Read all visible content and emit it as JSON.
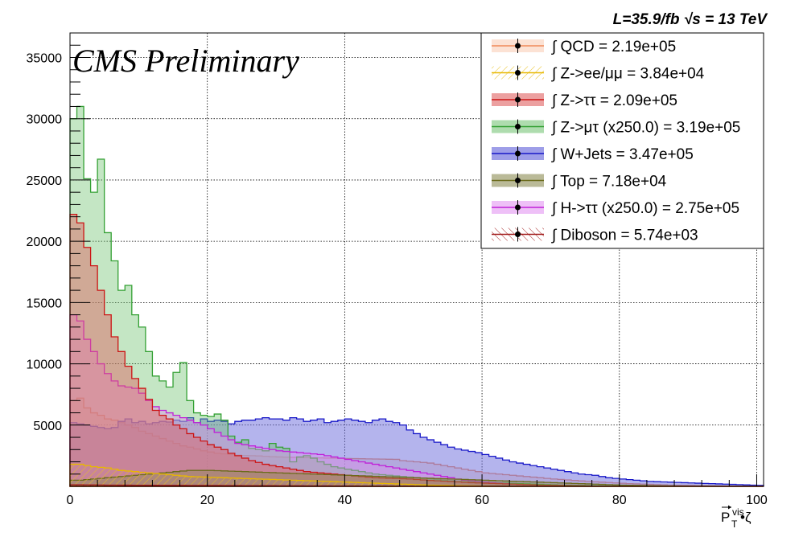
{
  "chart_data": {
    "type": "histogram",
    "title": "",
    "top_right_label": "L=35.9/fb  √s = 13 TeV",
    "overlay_label": "CMS Preliminary",
    "xlabel": "P_T^vis • ζ",
    "xlabel_main": "P",
    "xlabel_sub": "T",
    "xlabel_sup": "vis",
    "xlabel_suffix": " •ζ",
    "ylabel": "",
    "xlim": [
      0,
      101
    ],
    "ylim": [
      0,
      37000
    ],
    "x_ticks": [
      0,
      20,
      40,
      60,
      80,
      100
    ],
    "y_ticks": [
      5000,
      10000,
      15000,
      20000,
      25000,
      30000,
      35000
    ],
    "grid": true,
    "legend_position": "top-right",
    "bin_width": 1,
    "series": [
      {
        "name": "∫ QCD = 2.19e+05",
        "line_color": "#f08a5a",
        "fill_color": "#fbd3bd",
        "fill_opacity": 0.5,
        "hatched": false,
        "values": [
          7000,
          7200,
          6400,
          6000,
          5800,
          5500,
          5400,
          5200,
          5000,
          4800,
          4500,
          4300,
          4100,
          3900,
          3700,
          3500,
          3300,
          3200,
          3050,
          2900,
          2800,
          2700,
          2650,
          2600,
          2550,
          2520,
          2500,
          2480,
          2450,
          2420,
          2400,
          2380,
          2370,
          2360,
          2340,
          2330,
          2320,
          2310,
          2300,
          2280,
          2270,
          2260,
          2250,
          2240,
          2230,
          2220,
          2210,
          2200,
          2100,
          2050,
          2000,
          1950,
          1900,
          1800,
          1700,
          1600,
          1500,
          1400,
          1300,
          1200,
          1100,
          1050,
          1000,
          950,
          900,
          850,
          800,
          750,
          700,
          650,
          600,
          560,
          520,
          480,
          440,
          400,
          370,
          340,
          310,
          280,
          250,
          220,
          200,
          180,
          160,
          140,
          120,
          100,
          90,
          80,
          70,
          60,
          50,
          40,
          30,
          20,
          10,
          5,
          0,
          0,
          0
        ]
      },
      {
        "name": "∫ Z->ee/μμ = 3.84e+04",
        "line_color": "#e8b800",
        "fill_color": "#f6e27a",
        "fill_opacity": 0.35,
        "hatched": true,
        "values": [
          1800,
          1800,
          1700,
          1600,
          1550,
          1500,
          1400,
          1300,
          1250,
          1200,
          1150,
          1100,
          1050,
          1000,
          950,
          900,
          850,
          800,
          780,
          760,
          740,
          720,
          700,
          680,
          660,
          640,
          620,
          600,
          580,
          560,
          540,
          520,
          500,
          480,
          460,
          440,
          420,
          400,
          380,
          360,
          340,
          320,
          300,
          280,
          260,
          240,
          220,
          200,
          180,
          160,
          140,
          120,
          100,
          90,
          80,
          70,
          60,
          50,
          40,
          30,
          20,
          15,
          10,
          8,
          6,
          4,
          2,
          0,
          0,
          0,
          0,
          0,
          0,
          0,
          0,
          0,
          0,
          0,
          0,
          0,
          0,
          0,
          0,
          0,
          0,
          0,
          0,
          0,
          0,
          0,
          0,
          0,
          0,
          0,
          0,
          0,
          0,
          0,
          0,
          0,
          0
        ]
      },
      {
        "name": "∫ Z->ττ = 2.09e+05",
        "line_color": "#cc1414",
        "fill_color": "#e06060",
        "fill_opacity": 0.45,
        "hatched": false,
        "values": [
          22200,
          21500,
          19500,
          18000,
          16000,
          14000,
          12200,
          11000,
          9800,
          8800,
          8000,
          7100,
          6200,
          5800,
          5500,
          5000,
          4700,
          4300,
          4000,
          3700,
          3400,
          3200,
          3000,
          2700,
          2500,
          2300,
          2100,
          1950,
          1800,
          1700,
          1600,
          1500,
          1400,
          1300,
          1200,
          1150,
          1100,
          1050,
          1000,
          950,
          900,
          850,
          800,
          750,
          700,
          680,
          660,
          640,
          620,
          600,
          560,
          520,
          480,
          450,
          420,
          390,
          360,
          330,
          300,
          280,
          260,
          240,
          220,
          200,
          180,
          160,
          140,
          120,
          100,
          90,
          80,
          70,
          60,
          50,
          40,
          30,
          20,
          15,
          10,
          5,
          0,
          0,
          0,
          0,
          0,
          0,
          0,
          0,
          0,
          0,
          0,
          0,
          0,
          0,
          0,
          0,
          0,
          0,
          0,
          0,
          0
        ]
      },
      {
        "name": "∫ Z->μτ (x250.0) = 3.19e+05",
        "line_color": "#33a033",
        "fill_color": "#6cc06c",
        "fill_opacity": 0.4,
        "hatched": false,
        "values": [
          30000,
          31000,
          25100,
          24000,
          26700,
          20700,
          18400,
          16000,
          16400,
          14000,
          13000,
          11000,
          9000,
          8600,
          8100,
          9300,
          10100,
          7000,
          6000,
          5800,
          5700,
          5900,
          5400,
          4100,
          3600,
          3800,
          3100,
          3000,
          2900,
          3500,
          3200,
          3100,
          2000,
          2400,
          2500,
          2300,
          2000,
          1800,
          1600,
          1500,
          1400,
          1300,
          1200,
          1100,
          1000,
          950,
          900,
          850,
          800,
          750,
          700,
          650,
          600,
          550,
          500,
          450,
          400,
          380,
          360,
          340,
          320,
          300,
          280,
          260,
          240,
          220,
          200,
          180,
          160,
          140,
          120,
          100,
          90,
          80,
          70,
          60,
          50,
          40,
          30,
          20,
          15,
          10,
          8,
          6,
          4,
          2,
          1,
          0,
          0,
          0,
          0,
          0,
          0,
          0,
          0,
          0,
          0,
          0,
          0,
          0,
          0
        ]
      },
      {
        "name": "∫ W+Jets = 3.47e+05",
        "line_color": "#1818c8",
        "fill_color": "#6a6adc",
        "fill_opacity": 0.5,
        "hatched": false,
        "values": [
          5200,
          5100,
          5000,
          4900,
          4800,
          4700,
          4800,
          5300,
          5500,
          5200,
          5300,
          5100,
          5200,
          5300,
          5250,
          5400,
          5300,
          5600,
          5200,
          5500,
          5300,
          5400,
          5300,
          5100,
          5300,
          5400,
          5400,
          5500,
          5600,
          5500,
          5500,
          5400,
          5600,
          5500,
          5300,
          5400,
          5500,
          5200,
          5300,
          5400,
          5500,
          5400,
          5300,
          5200,
          5400,
          5500,
          5300,
          5200,
          5000,
          4600,
          4300,
          4000,
          3800,
          3600,
          3400,
          3200,
          3050,
          2950,
          2850,
          2750,
          2600,
          2450,
          2300,
          2150,
          2000,
          1900,
          1800,
          1700,
          1600,
          1500,
          1400,
          1300,
          1200,
          1100,
          1000,
          950,
          900,
          800,
          700,
          650,
          600,
          550,
          500,
          450,
          400,
          380,
          360,
          340,
          320,
          300,
          280,
          260,
          240,
          220,
          200,
          180,
          160,
          140,
          120,
          100,
          80
        ]
      },
      {
        "name": "∫ Top = 7.18e+04",
        "line_color": "#6b6b1a",
        "fill_color": "#8c8c54",
        "fill_opacity": 0.45,
        "hatched": false,
        "values": [
          500,
          500,
          550,
          600,
          650,
          700,
          750,
          800,
          850,
          900,
          950,
          1000,
          1050,
          1100,
          1150,
          1200,
          1250,
          1300,
          1300,
          1300,
          1300,
          1280,
          1260,
          1240,
          1220,
          1200,
          1180,
          1160,
          1140,
          1120,
          1100,
          1080,
          1060,
          1040,
          1020,
          1000,
          980,
          960,
          940,
          920,
          900,
          880,
          860,
          840,
          820,
          800,
          780,
          760,
          740,
          720,
          700,
          680,
          660,
          640,
          620,
          600,
          580,
          560,
          540,
          520,
          500,
          480,
          460,
          440,
          420,
          400,
          380,
          360,
          340,
          320,
          300,
          280,
          260,
          240,
          220,
          200,
          180,
          160,
          140,
          120,
          100,
          90,
          80,
          70,
          60,
          50,
          40,
          30,
          20,
          15,
          10,
          8,
          6,
          4,
          2,
          1,
          0,
          0,
          0,
          0,
          0
        ]
      },
      {
        "name": "∫ H->ττ (x250.0) = 2.75e+05",
        "line_color": "#c020d8",
        "fill_color": "#e08cf0",
        "fill_opacity": 0.4,
        "hatched": false,
        "values": [
          14000,
          13500,
          12000,
          11000,
          10000,
          9200,
          8600,
          8200,
          8100,
          8000,
          7600,
          7000,
          6500,
          6200,
          6000,
          5800,
          5600,
          5400,
          5200,
          5000,
          4700,
          4400,
          4100,
          3800,
          3500,
          3400,
          3300,
          3200,
          3100,
          3000,
          2900,
          2850,
          2800,
          2750,
          2700,
          2650,
          2600,
          2500,
          2400,
          2300,
          2200,
          2100,
          2000,
          1900,
          1800,
          1700,
          1600,
          1500,
          1400,
          1300,
          1200,
          1100,
          1000,
          900,
          800,
          700,
          600,
          500,
          450,
          400,
          350,
          300,
          260,
          220,
          180,
          150,
          120,
          100,
          80,
          60,
          40,
          30,
          20,
          10,
          5,
          0,
          0,
          0,
          0,
          0,
          0,
          0,
          0,
          0,
          0,
          0,
          0,
          0,
          0,
          0,
          0,
          0,
          0,
          0,
          0,
          0,
          0,
          0,
          0,
          0,
          0
        ]
      },
      {
        "name": "∫ Diboson = 5.74e+03",
        "line_color": "#a01818",
        "fill_color": "#c85050",
        "fill_opacity": 0.2,
        "hatched": true,
        "values": [
          120,
          120,
          115,
          110,
          105,
          100,
          98,
          96,
          94,
          92,
          90,
          88,
          86,
          84,
          82,
          80,
          78,
          76,
          74,
          72,
          70,
          68,
          66,
          64,
          62,
          60,
          58,
          56,
          54,
          52,
          50,
          48,
          46,
          44,
          42,
          40,
          38,
          36,
          34,
          32,
          30,
          28,
          26,
          24,
          22,
          20,
          18,
          16,
          14,
          12,
          10,
          10,
          9,
          9,
          8,
          8,
          7,
          7,
          6,
          6,
          5,
          5,
          4,
          4,
          3,
          3,
          2,
          2,
          1,
          1,
          0,
          0,
          0,
          0,
          0,
          0,
          0,
          0,
          0,
          0,
          0,
          0,
          0,
          0,
          0,
          0,
          0,
          0,
          0,
          0,
          0,
          0,
          0,
          0,
          0,
          0,
          0,
          0,
          0,
          0,
          0
        ]
      }
    ]
  }
}
